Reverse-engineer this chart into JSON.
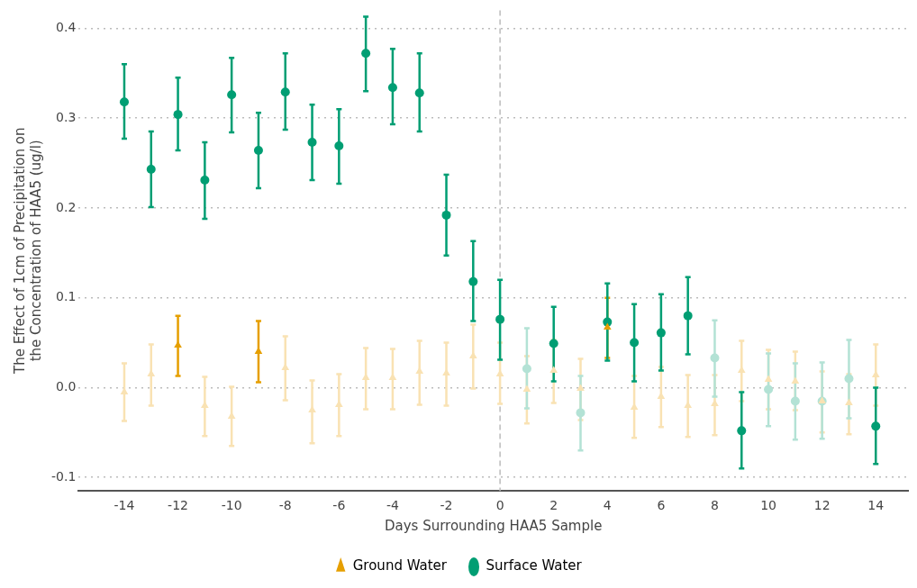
{
  "chart_data": {
    "type": "scatter",
    "xlabel": "Days Surrounding HAA5 Sample",
    "ylabel": "The Effect of 1cm of Precipitation on\nthe Concentration of HAA5 (ug/l)",
    "xlim": [
      -15.7,
      15.2
    ],
    "xticks": [
      -14,
      -12,
      -10,
      -8,
      -6,
      -4,
      -2,
      0,
      2,
      4,
      6,
      8,
      10,
      12,
      14
    ],
    "ylim": [
      -0.115,
      0.42
    ],
    "yticks": [
      -0.1,
      {
        "value": 0,
        "label": "0.0"
      },
      0.1,
      0.2,
      0.3,
      0.4
    ],
    "grid": "y",
    "legend": "bottom",
    "ref_lines": [
      {
        "axis": "x",
        "value": 0,
        "color": "#bbbbbb",
        "line_style": "dashed"
      }
    ],
    "series": [
      {
        "name": "Ground Water",
        "color": "#e69f00",
        "marker": "triangle",
        "x": [
          -14,
          -13,
          -12,
          -11,
          -10,
          -9,
          -8,
          -7,
          -6,
          -5,
          -4,
          -3,
          -2,
          -1,
          0,
          1,
          2,
          3,
          4,
          5,
          6,
          7,
          8,
          9,
          10,
          11,
          12,
          13,
          14
        ],
        "values": [
          -0.005,
          0.015,
          0.047,
          -0.02,
          -0.032,
          0.04,
          0.022,
          -0.025,
          -0.019,
          0.011,
          0.011,
          0.018,
          0.016,
          0.035,
          0.015,
          -0.002,
          0.019,
          -0.001,
          0.067,
          -0.022,
          -0.01,
          -0.02,
          -0.018,
          0.019,
          0.009,
          0.007,
          -0.015,
          -0.017,
          0.014
        ],
        "errors": [
          [
            -0.037,
            0.027
          ],
          [
            -0.02,
            0.048
          ],
          [
            0.013,
            0.08
          ],
          [
            -0.054,
            0.012
          ],
          [
            -0.065,
            0.001
          ],
          [
            0.006,
            0.074
          ],
          [
            -0.014,
            0.057
          ],
          [
            -0.062,
            0.008
          ],
          [
            -0.054,
            0.015
          ],
          [
            -0.024,
            0.044
          ],
          [
            -0.024,
            0.043
          ],
          [
            -0.019,
            0.052
          ],
          [
            -0.02,
            0.05
          ],
          [
            -0.001,
            0.07
          ],
          [
            -0.018,
            0.05
          ],
          [
            -0.04,
            0.035
          ],
          [
            -0.017,
            0.053
          ],
          [
            -0.036,
            0.032
          ],
          [
            0.033,
            0.1
          ],
          [
            -0.056,
            0.013
          ],
          [
            -0.044,
            0.023
          ],
          [
            -0.055,
            0.014
          ],
          [
            -0.053,
            0.014
          ],
          [
            -0.015,
            0.052
          ],
          [
            -0.024,
            0.042
          ],
          [
            -0.025,
            0.04
          ],
          [
            -0.05,
            0.018
          ],
          [
            -0.052,
            0.015
          ],
          [
            -0.02,
            0.048
          ]
        ],
        "colors": [
          "#f9e2b3",
          "#f9e2b3",
          "#e69f00",
          "#f9e2b3",
          "#f9e2b3",
          "#e69f00",
          "#f9e2b3",
          "#f9e2b3",
          "#f9e2b3",
          "#f9e2b3",
          "#f9e2b3",
          "#f9e2b3",
          "#f9e2b3",
          "#f9e2b3",
          "#f9e2b3",
          "#f9e2b3",
          "#f9e2b3",
          "#f9e2b3",
          "#e69f00",
          "#f9e2b3",
          "#f9e2b3",
          "#f9e2b3",
          "#f9e2b3",
          "#f9e2b3",
          "#f9e2b3",
          "#f9e2b3",
          "#f9e2b3",
          "#f9e2b3",
          "#f9e2b3"
        ]
      },
      {
        "name": "Surface Water",
        "color": "#009e73",
        "marker": "circle",
        "x": [
          -14,
          -13,
          -12,
          -11,
          -10,
          -9,
          -8,
          -7,
          -6,
          -5,
          -4,
          -3,
          -2,
          -1,
          0,
          1,
          2,
          3,
          4,
          5,
          6,
          7,
          8,
          9,
          10,
          11,
          12,
          13,
          14
        ],
        "values": [
          0.318,
          0.243,
          0.304,
          0.231,
          0.326,
          0.264,
          0.329,
          0.273,
          0.269,
          0.372,
          0.334,
          0.328,
          0.192,
          0.118,
          0.076,
          0.021,
          0.049,
          -0.028,
          0.073,
          0.05,
          0.061,
          0.08,
          0.033,
          -0.048,
          -0.002,
          -0.015,
          -0.015,
          0.01,
          -0.043
        ],
        "errors": [
          [
            0.277,
            0.36
          ],
          [
            0.201,
            0.285
          ],
          [
            0.264,
            0.345
          ],
          [
            0.188,
            0.273
          ],
          [
            0.284,
            0.367
          ],
          [
            0.222,
            0.306
          ],
          [
            0.287,
            0.372
          ],
          [
            0.231,
            0.315
          ],
          [
            0.227,
            0.31
          ],
          [
            0.33,
            0.413
          ],
          [
            0.293,
            0.377
          ],
          [
            0.285,
            0.372
          ],
          [
            0.147,
            0.237
          ],
          [
            0.074,
            0.163
          ],
          [
            0.031,
            0.12
          ],
          [
            -0.023,
            0.066
          ],
          [
            0.007,
            0.09
          ],
          [
            -0.07,
            0.013
          ],
          [
            0.03,
            0.116
          ],
          [
            0.007,
            0.093
          ],
          [
            0.019,
            0.104
          ],
          [
            0.037,
            0.123
          ],
          [
            -0.01,
            0.075
          ],
          [
            -0.09,
            -0.005
          ],
          [
            -0.043,
            0.038
          ],
          [
            -0.058,
            0.027
          ],
          [
            -0.057,
            0.028
          ],
          [
            -0.034,
            0.053
          ],
          [
            -0.085,
            0
          ]
        ],
        "colors": [
          "#009e73",
          "#009e73",
          "#009e73",
          "#009e73",
          "#009e73",
          "#009e73",
          "#009e73",
          "#009e73",
          "#009e73",
          "#009e73",
          "#009e73",
          "#009e73",
          "#009e73",
          "#009e73",
          "#009e73",
          "#b3e2d5",
          "#009e73",
          "#b3e2d5",
          "#009e73",
          "#009e73",
          "#009e73",
          "#009e73",
          "#b3e2d5",
          "#009e73",
          "#b3e2d5",
          "#b3e2d5",
          "#b3e2d5",
          "#b3e2d5",
          "#009e73"
        ]
      }
    ]
  }
}
